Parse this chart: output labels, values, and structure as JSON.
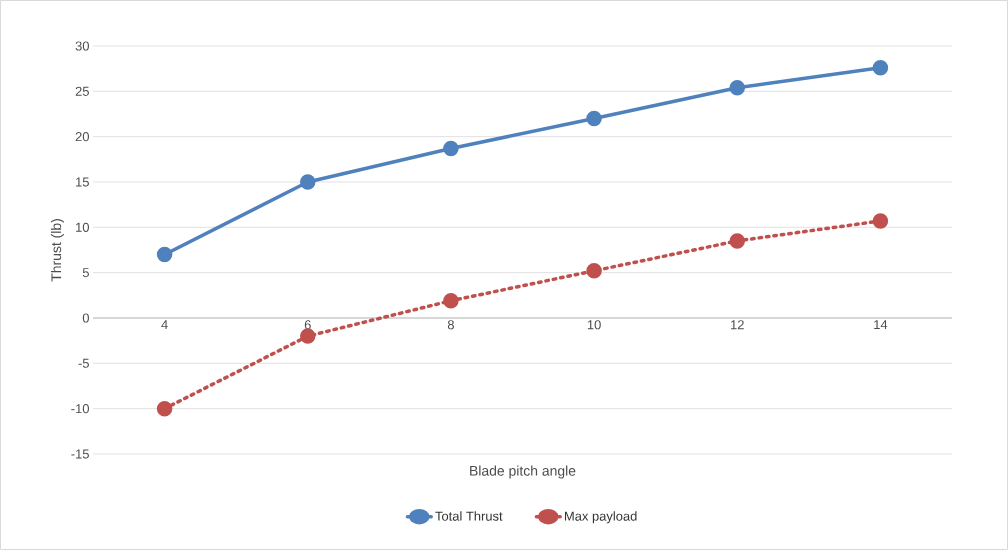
{
  "chart_data": {
    "type": "line",
    "xlabel": "Blade pitch angle",
    "ylabel": "Thrust (lb)",
    "categories": [
      "4",
      "6",
      "8",
      "10",
      "12",
      "14"
    ],
    "series": [
      {
        "name": "Total Thrust",
        "color": "#4f81bd",
        "values": [
          7,
          15,
          18.7,
          22,
          25.4,
          27.6
        ],
        "line_style": "solid"
      },
      {
        "name": "Max payload",
        "color": "#c0504d",
        "values": [
          -10,
          -2,
          1.9,
          5.2,
          8.5,
          10.7
        ],
        "line_style": "dotted"
      }
    ],
    "ylim": [
      -15,
      30
    ],
    "yticks": [
      -15,
      -10,
      -5,
      0,
      5,
      10,
      15,
      20,
      25,
      30
    ],
    "grid": "y",
    "legend": "bottom",
    "marker": "circle"
  }
}
